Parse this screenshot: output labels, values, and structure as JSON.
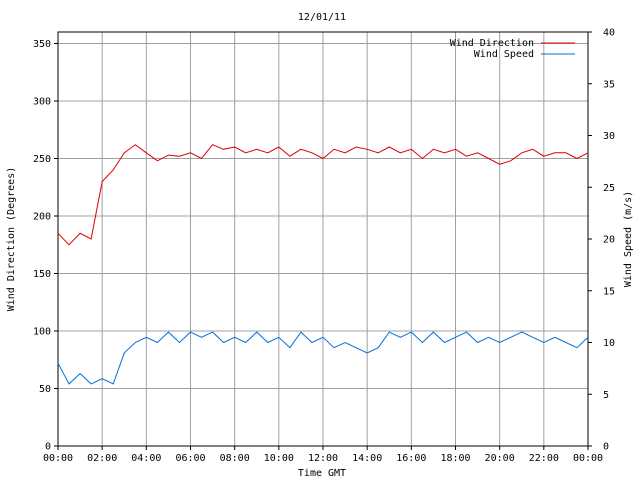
{
  "chart_data": {
    "type": "line",
    "title": "12/01/11",
    "xlabel": "Time GMT",
    "ylabel_left": "Wind Direction (Degrees)",
    "ylabel_right": "Wind Speed (m/s)",
    "x_tick_labels": [
      "00:00",
      "02:00",
      "04:00",
      "06:00",
      "08:00",
      "10:00",
      "12:00",
      "14:00",
      "16:00",
      "18:00",
      "20:00",
      "22:00",
      "00:00"
    ],
    "x_range_hours": [
      0,
      24
    ],
    "y_left_range": [
      0,
      360
    ],
    "y_left_ticks": [
      0,
      50,
      100,
      150,
      200,
      250,
      300,
      350
    ],
    "y_right_range": [
      0,
      40
    ],
    "y_right_ticks": [
      0,
      5,
      10,
      15,
      20,
      25,
      30,
      35,
      40
    ],
    "grid": true,
    "legend_position": "top-right",
    "series": [
      {
        "name": "Wind Direction",
        "axis": "left",
        "color": "#dd0000",
        "x_hours": [
          0,
          0.5,
          1,
          1.5,
          2,
          2.5,
          3,
          3.5,
          4,
          4.5,
          5,
          5.5,
          6,
          6.5,
          7,
          7.5,
          8,
          8.5,
          9,
          9.5,
          10,
          10.5,
          11,
          11.5,
          12,
          12.5,
          13,
          13.5,
          14,
          14.5,
          15,
          15.5,
          16,
          16.5,
          17,
          17.5,
          18,
          18.5,
          19,
          19.5,
          20,
          20.5,
          21,
          21.5,
          22,
          22.5,
          23,
          23.5,
          24
        ],
        "values": [
          185,
          175,
          185,
          180,
          230,
          240,
          255,
          262,
          255,
          248,
          253,
          252,
          255,
          250,
          262,
          258,
          260,
          255,
          258,
          255,
          260,
          252,
          258,
          255,
          250,
          258,
          255,
          260,
          258,
          255,
          260,
          255,
          258,
          250,
          258,
          255,
          258,
          252,
          255,
          250,
          245,
          248,
          255,
          258,
          252,
          255,
          255,
          250,
          255
        ]
      },
      {
        "name": "Wind Speed",
        "axis": "right",
        "color": "#0070dd",
        "x_hours": [
          0,
          0.5,
          1,
          1.5,
          2,
          2.5,
          3,
          3.5,
          4,
          4.5,
          5,
          5.5,
          6,
          6.5,
          7,
          7.5,
          8,
          8.5,
          9,
          9.5,
          10,
          10.5,
          11,
          11.5,
          12,
          12.5,
          13,
          13.5,
          14,
          14.5,
          15,
          15.5,
          16,
          16.5,
          17,
          17.5,
          18,
          18.5,
          19,
          19.5,
          20,
          20.5,
          21,
          21.5,
          22,
          22.5,
          23,
          23.5,
          24
        ],
        "values": [
          8,
          6,
          7,
          6,
          6.5,
          6,
          9,
          10,
          10.5,
          10,
          11,
          10,
          11,
          10.5,
          11,
          10,
          10.5,
          10,
          11,
          10,
          10.5,
          9.5,
          11,
          10,
          10.5,
          9.5,
          10,
          9.5,
          9,
          9.5,
          11,
          10.5,
          11,
          10,
          11,
          10,
          10.5,
          11,
          10,
          10.5,
          10,
          10.5,
          11,
          10.5,
          10,
          10.5,
          10,
          9.5,
          10.5
        ]
      }
    ]
  }
}
